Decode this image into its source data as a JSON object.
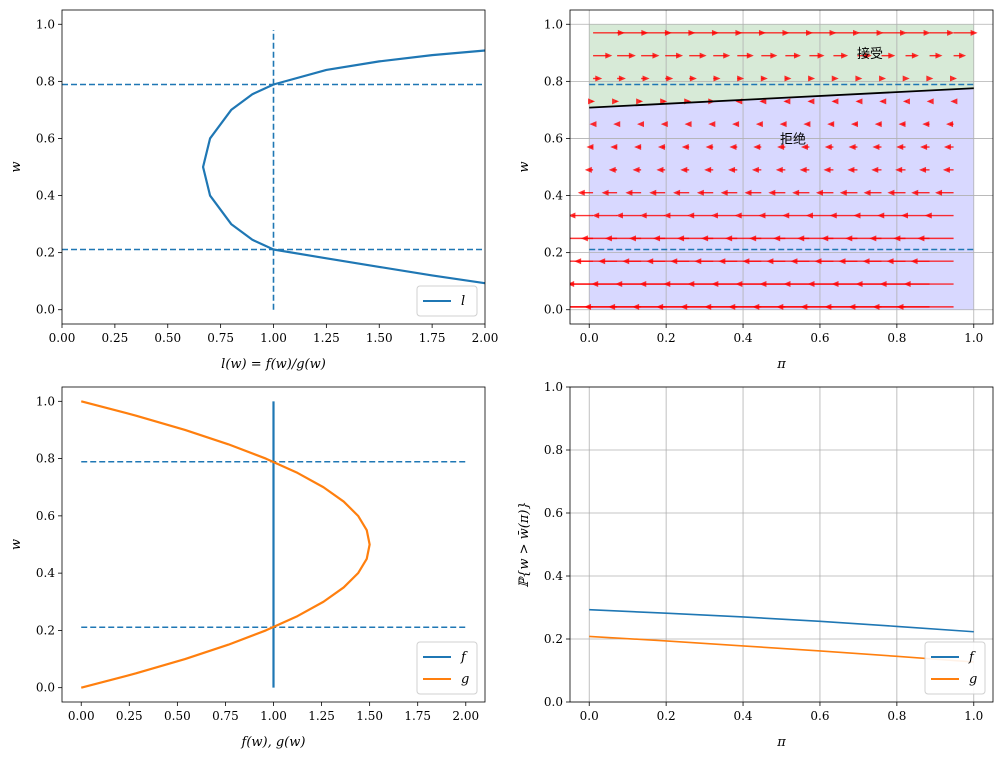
{
  "colors": {
    "blue": "#1f77b4",
    "orange": "#ff7f0e",
    "black": "#000000",
    "arrow_red": "#ff0000",
    "accept_fill": "#d7ead7",
    "reject_fill": "#d8d8ff",
    "grid": "#b0b0b0"
  },
  "chart_data": [
    {
      "type": "line",
      "panel": "top-left",
      "xlabel": "l(w) = f(w)/g(w)",
      "ylabel": "w",
      "xlim": [
        0,
        2
      ],
      "ylim": [
        -0.05,
        1.05
      ],
      "xticks": [
        "0.00",
        "0.25",
        "0.50",
        "0.75",
        "1.00",
        "1.25",
        "1.50",
        "1.75",
        "2.00"
      ],
      "yticks": [
        "0.0",
        "0.2",
        "0.4",
        "0.6",
        "0.8",
        "1.0"
      ],
      "grid": false,
      "legend_position": "lower-right",
      "series": [
        {
          "name": "l",
          "color": "#1f77b4",
          "style": "solid",
          "points": [
            [
              2.0,
              0.093
            ],
            [
              1.75,
              0.12
            ],
            [
              1.5,
              0.15
            ],
            [
              1.25,
              0.18
            ],
            [
              1.0,
              0.211
            ],
            [
              0.9,
              0.245
            ],
            [
              0.8,
              0.3
            ],
            [
              0.7,
              0.4
            ],
            [
              0.667,
              0.5
            ],
            [
              0.7,
              0.6
            ],
            [
              0.8,
              0.7
            ],
            [
              0.9,
              0.755
            ],
            [
              1.0,
              0.789
            ],
            [
              1.25,
              0.84
            ],
            [
              1.5,
              0.87
            ],
            [
              1.75,
              0.892
            ],
            [
              2.0,
              0.908
            ]
          ]
        }
      ],
      "reference_lines": {
        "horizontal": [
          0.789,
          0.211
        ],
        "vertical": [
          1.0
        ],
        "vertical_range": [
          0.0,
          0.98
        ]
      }
    },
    {
      "type": "quiver",
      "panel": "top-right",
      "xlabel": "π",
      "ylabel": "w",
      "xlim": [
        -0.05,
        1.05
      ],
      "ylim": [
        -0.05,
        1.05
      ],
      "xticks": [
        "0.0",
        "0.2",
        "0.4",
        "0.6",
        "0.8",
        "1.0"
      ],
      "yticks": [
        "0.0",
        "0.2",
        "0.4",
        "0.6",
        "0.8",
        "1.0"
      ],
      "grid": true,
      "annotations": [
        {
          "text": "接受",
          "x": 0.73,
          "y": 0.9
        },
        {
          "text": "拒绝",
          "x": 0.53,
          "y": 0.6
        }
      ],
      "boundary": {
        "x": [
          0.0,
          1.0
        ],
        "y": [
          0.708,
          0.776
        ]
      },
      "reference_lines": {
        "horizontal": [
          0.789,
          0.211
        ]
      },
      "arrow_grid": {
        "x_start": 0.01,
        "x_step": 0.0625,
        "x_count": 16,
        "y": [
          0.01,
          0.09,
          0.17,
          0.25,
          0.33,
          0.41,
          0.49,
          0.57,
          0.65,
          0.73,
          0.81,
          0.89,
          0.97
        ]
      }
    },
    {
      "type": "line",
      "panel": "bottom-left",
      "xlabel": "f(w), g(w)",
      "ylabel": "w",
      "xlim": [
        -0.1,
        2.1
      ],
      "ylim": [
        -0.05,
        1.05
      ],
      "xticks": [
        "0.00",
        "0.25",
        "0.50",
        "0.75",
        "1.00",
        "1.25",
        "1.50",
        "1.75",
        "2.00"
      ],
      "yticks": [
        "0.0",
        "0.2",
        "0.4",
        "0.6",
        "0.8",
        "1.0"
      ],
      "grid": false,
      "legend_position": "lower-right",
      "series": [
        {
          "name": "f",
          "color": "#1f77b4",
          "style": "solid",
          "points": [
            [
              1.0,
              0.0
            ],
            [
              1.0,
              1.0
            ]
          ]
        },
        {
          "name": "g",
          "color": "#ff7f0e",
          "style": "solid",
          "points": [
            [
              0.0,
              0.0
            ],
            [
              0.285,
              0.05
            ],
            [
              0.54,
              0.1
            ],
            [
              0.765,
              0.15
            ],
            [
              0.96,
              0.2
            ],
            [
              1.125,
              0.25
            ],
            [
              1.26,
              0.3
            ],
            [
              1.365,
              0.35
            ],
            [
              1.44,
              0.4
            ],
            [
              1.485,
              0.45
            ],
            [
              1.5,
              0.5
            ],
            [
              1.485,
              0.55
            ],
            [
              1.44,
              0.6
            ],
            [
              1.365,
              0.65
            ],
            [
              1.26,
              0.7
            ],
            [
              1.125,
              0.75
            ],
            [
              0.96,
              0.8
            ],
            [
              0.765,
              0.85
            ],
            [
              0.54,
              0.9
            ],
            [
              0.285,
              0.95
            ],
            [
              0.0,
              1.0
            ]
          ]
        }
      ],
      "reference_lines": {
        "horizontal": [
          0.789,
          0.211
        ],
        "horizontal_range": [
          0.0,
          2.0
        ]
      }
    },
    {
      "type": "line",
      "panel": "bottom-right",
      "xlabel": "π",
      "ylabel": "ℙ{w > w̄(π)}",
      "xlim": [
        -0.05,
        1.05
      ],
      "ylim": [
        0.0,
        1.0
      ],
      "xticks": [
        "0.0",
        "0.2",
        "0.4",
        "0.6",
        "0.8",
        "1.0"
      ],
      "yticks": [
        "0.0",
        "0.2",
        "0.4",
        "0.6",
        "0.8",
        "1.0"
      ],
      "grid": true,
      "legend_position": "lower-right",
      "series": [
        {
          "name": "f",
          "color": "#1f77b4",
          "style": "solid",
          "points": [
            [
              0.0,
              0.293
            ],
            [
              0.2,
              0.282
            ],
            [
              0.4,
              0.27
            ],
            [
              0.6,
              0.256
            ],
            [
              0.8,
              0.24
            ],
            [
              1.0,
              0.223
            ]
          ]
        },
        {
          "name": "g",
          "color": "#ff7f0e",
          "style": "solid",
          "points": [
            [
              0.0,
              0.208
            ],
            [
              0.2,
              0.194
            ],
            [
              0.4,
              0.178
            ],
            [
              0.6,
              0.162
            ],
            [
              0.8,
              0.145
            ],
            [
              1.0,
              0.127
            ]
          ]
        }
      ]
    }
  ]
}
